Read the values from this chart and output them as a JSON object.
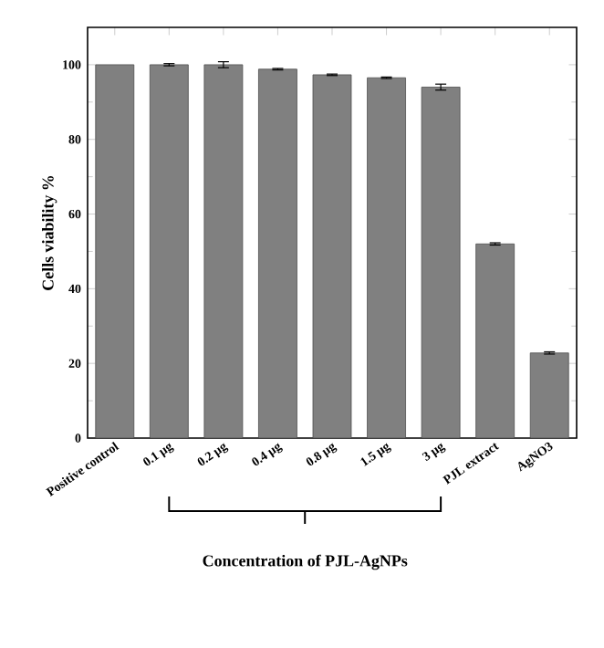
{
  "chart_data": {
    "type": "bar",
    "categories": [
      "Positive control",
      "0.1 μg",
      "0.2 μg",
      "0.4 μg",
      "0.8 μg",
      "1.5 μg",
      "3 μg",
      "PJL extract",
      "AgNO3"
    ],
    "values": [
      100,
      100,
      100,
      98.8,
      97.3,
      96.5,
      94,
      52,
      22.8
    ],
    "errors": [
      null,
      0.3,
      0.8,
      0.2,
      0.2,
      0.2,
      0.8,
      0.3,
      0.3
    ],
    "color": "#808080",
    "ylabel": "Cells viability %",
    "xlabel": "Concentration of PJL-AgNPs",
    "ylim": [
      0,
      110
    ],
    "yticks": [
      0,
      20,
      40,
      60,
      80,
      100
    ],
    "grid": false
  }
}
